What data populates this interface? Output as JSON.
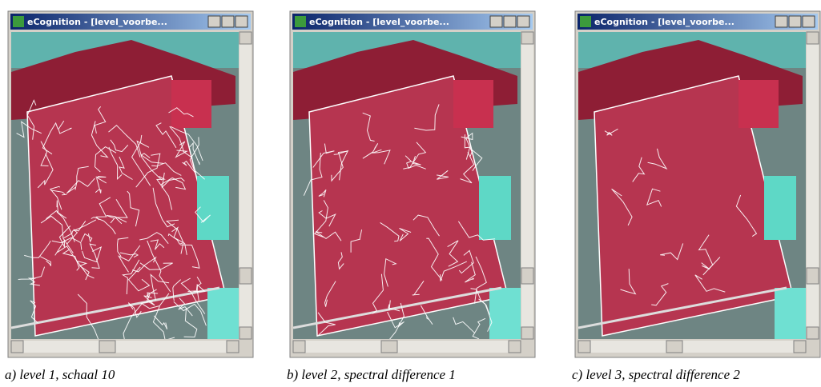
{
  "panels": [
    {
      "window_title": "eCognition - [level_voorbe...",
      "caption": "a) level 1, schaal 10"
    },
    {
      "window_title": "eCognition - [level_voorbe...",
      "caption": "b) level 2, spectral difference 1"
    },
    {
      "window_title": "eCognition - [level_voorbe...",
      "caption": "c) level 3, spectral difference 2"
    }
  ]
}
